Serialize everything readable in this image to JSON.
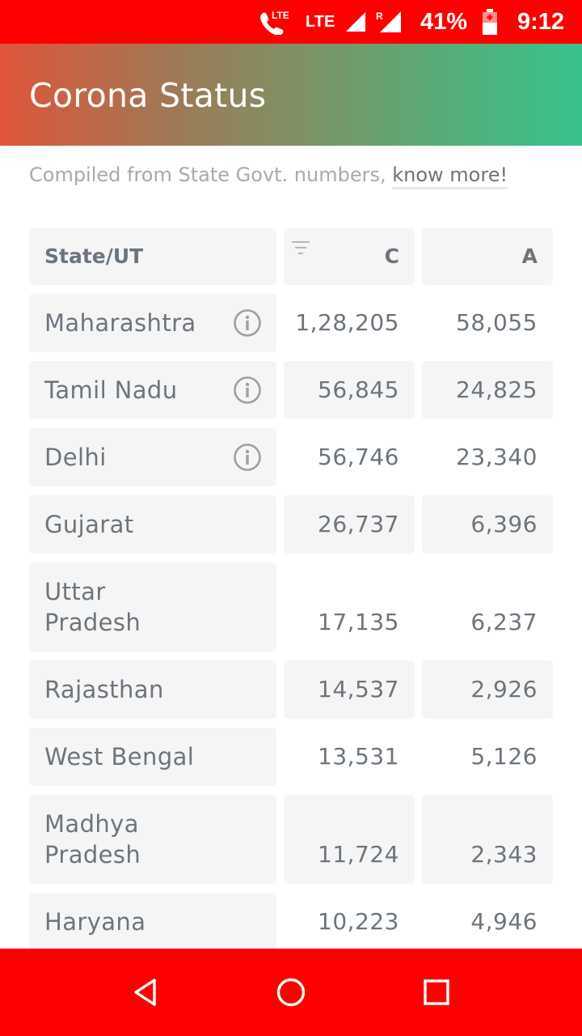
{
  "status_bar": {
    "network_1": "LTE",
    "network_2": "LTE",
    "roaming": "R",
    "battery": "41%",
    "time": "9:12"
  },
  "app_bar": {
    "title": "Corona Status"
  },
  "note": {
    "text": "Compiled from State Govt. numbers, ",
    "link": "know more!"
  },
  "table": {
    "headers": {
      "state": "State/UT",
      "confirmed": "C",
      "active": "A"
    },
    "rows": [
      {
        "state": "Maharashtra",
        "confirmed": "1,28,205",
        "active": "58,055",
        "info": true
      },
      {
        "state": "Tamil Nadu",
        "confirmed": "56,845",
        "active": "24,825",
        "info": true
      },
      {
        "state": "Delhi",
        "confirmed": "56,746",
        "active": "23,340",
        "info": true
      },
      {
        "state": "Gujarat",
        "confirmed": "26,737",
        "active": "6,396"
      },
      {
        "state_line1": "Uttar",
        "state_line2": "Pradesh",
        "confirmed": "17,135",
        "active": "6,237"
      },
      {
        "state": "Rajasthan",
        "confirmed": "14,537",
        "active": "2,926"
      },
      {
        "state": "West Bengal",
        "confirmed": "13,531",
        "active": "5,126"
      },
      {
        "state_line1": "Madhya",
        "state_line2": "Pradesh",
        "confirmed": "11,724",
        "active": "2,343"
      },
      {
        "state": "Haryana",
        "confirmed": "10,223",
        "active": "4,946"
      }
    ]
  },
  "icons": {
    "info": "info-icon",
    "filter": "filter-icon",
    "back": "back-triangle-icon",
    "home": "home-circle-icon",
    "recents": "recents-square-icon"
  }
}
